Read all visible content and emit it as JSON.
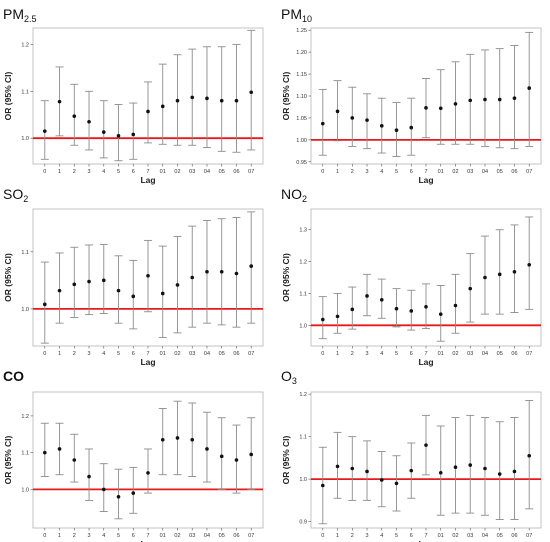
{
  "colors": {
    "reference_line": "#e8191b",
    "error_bar": "#8c8c8c",
    "point": "#111111",
    "frame": "#b5b5b5"
  },
  "chart_data": [
    {
      "type": "scatter",
      "error_bars": true,
      "title": "PM",
      "title_sub": "2.5",
      "title_bold": false,
      "xlabel": "Lag",
      "ylabel": "OR (95% CI)",
      "categories": [
        "0",
        "1",
        "2",
        "3",
        "4",
        "5",
        "6",
        "7",
        "01",
        "02",
        "03",
        "04",
        "05",
        "06",
        "07"
      ],
      "ylim": [
        0.945,
        1.235
      ],
      "yticks": [
        1.0,
        1.1,
        1.2
      ],
      "reference": 1.0,
      "values": [
        1.015,
        1.078,
        1.047,
        1.035,
        1.013,
        1.005,
        1.008,
        1.057,
        1.068,
        1.08,
        1.087,
        1.085,
        1.08,
        1.08,
        1.098
      ],
      "lower": [
        0.955,
        1.005,
        0.985,
        0.975,
        0.958,
        0.952,
        0.955,
        0.99,
        0.987,
        0.985,
        0.985,
        0.98,
        0.972,
        0.97,
        0.975
      ],
      "upper": [
        1.08,
        1.152,
        1.115,
        1.1,
        1.08,
        1.072,
        1.075,
        1.12,
        1.158,
        1.178,
        1.19,
        1.195,
        1.195,
        1.2,
        1.23
      ]
    },
    {
      "type": "scatter",
      "error_bars": true,
      "title": "PM",
      "title_sub": "10",
      "title_bold": false,
      "xlabel": "Lag",
      "ylabel": "OR (95% CI)",
      "categories": [
        "0",
        "1",
        "2",
        "3",
        "4",
        "5",
        "6",
        "7",
        "01",
        "02",
        "03",
        "04",
        "05",
        "06",
        "07"
      ],
      "ylim": [
        0.945,
        1.255
      ],
      "yticks": [
        0.95,
        1.0,
        1.05,
        1.1,
        1.15,
        1.2,
        1.25
      ],
      "ytick_labels": [
        "0.95",
        "1.00",
        "1.05",
        "1.10",
        "1.15",
        "1.20",
        "1.25"
      ],
      "reference": 1.0,
      "values": [
        1.037,
        1.065,
        1.05,
        1.045,
        1.032,
        1.022,
        1.028,
        1.073,
        1.072,
        1.082,
        1.09,
        1.092,
        1.092,
        1.095,
        1.118
      ],
      "lower": [
        0.965,
        0.998,
        0.985,
        0.98,
        0.97,
        0.962,
        0.965,
        1.005,
        0.99,
        0.99,
        0.99,
        0.985,
        0.982,
        0.98,
        0.985
      ],
      "upper": [
        1.115,
        1.135,
        1.12,
        1.105,
        1.095,
        1.085,
        1.095,
        1.14,
        1.16,
        1.178,
        1.195,
        1.205,
        1.208,
        1.215,
        1.245
      ]
    },
    {
      "type": "scatter",
      "error_bars": true,
      "title": "SO",
      "title_sub": "2",
      "title_bold": false,
      "xlabel": "Lag",
      "ylabel": "OR (95% CI)",
      "categories": [
        "0",
        "1",
        "2",
        "3",
        "4",
        "5",
        "6",
        "7",
        "01",
        "02",
        "03",
        "04",
        "05",
        "06",
        "07"
      ],
      "ylim": [
        0.935,
        1.175
      ],
      "yticks": [
        1.0,
        1.1
      ],
      "reference": 1.0,
      "values": [
        1.008,
        1.032,
        1.043,
        1.048,
        1.05,
        1.032,
        1.022,
        1.058,
        1.027,
        1.042,
        1.055,
        1.065,
        1.065,
        1.062,
        1.075
      ],
      "lower": [
        0.94,
        0.975,
        0.985,
        0.99,
        0.992,
        0.975,
        0.965,
        0.995,
        0.95,
        0.958,
        0.968,
        0.975,
        0.972,
        0.968,
        0.975
      ],
      "upper": [
        1.082,
        1.098,
        1.108,
        1.112,
        1.113,
        1.093,
        1.085,
        1.12,
        1.11,
        1.127,
        1.145,
        1.155,
        1.158,
        1.16,
        1.17
      ]
    },
    {
      "type": "scatter",
      "error_bars": true,
      "title": "NO",
      "title_sub": "2",
      "title_bold": false,
      "xlabel": "Lag",
      "ylabel": "OR (95% CI)",
      "categories": [
        "0",
        "1",
        "2",
        "3",
        "4",
        "5",
        "6",
        "7",
        "01",
        "02",
        "03",
        "04",
        "05",
        "06",
        "07"
      ],
      "ylim": [
        0.935,
        1.365
      ],
      "yticks": [
        1.0,
        1.1,
        1.2,
        1.3
      ],
      "reference": 1.0,
      "values": [
        1.018,
        1.028,
        1.05,
        1.092,
        1.08,
        1.052,
        1.045,
        1.058,
        1.035,
        1.062,
        1.115,
        1.15,
        1.16,
        1.168,
        1.19
      ],
      "lower": [
        0.958,
        0.975,
        0.988,
        1.03,
        1.022,
        0.995,
        0.985,
        0.99,
        0.95,
        0.975,
        1.01,
        1.035,
        1.035,
        1.04,
        1.05
      ],
      "upper": [
        1.09,
        1.1,
        1.12,
        1.16,
        1.145,
        1.115,
        1.11,
        1.13,
        1.125,
        1.16,
        1.225,
        1.28,
        1.3,
        1.315,
        1.34
      ]
    },
    {
      "type": "scatter",
      "error_bars": true,
      "title": "CO",
      "title_sub": "",
      "title_bold": true,
      "xlabel": "Lag",
      "ylabel": "OR (95% CI)",
      "categories": [
        "0",
        "1",
        "2",
        "3",
        "4",
        "5",
        "6",
        "7",
        "01",
        "02",
        "03",
        "04",
        "05",
        "06",
        "07"
      ],
      "ylim": [
        0.895,
        1.265
      ],
      "yticks": [
        1.0,
        1.1,
        1.2
      ],
      "reference": 1.0,
      "values": [
        1.1,
        1.11,
        1.08,
        1.035,
        1.0,
        0.98,
        0.99,
        1.045,
        1.135,
        1.14,
        1.135,
        1.11,
        1.09,
        1.08,
        1.095
      ],
      "lower": [
        1.035,
        1.04,
        1.02,
        0.97,
        0.94,
        0.92,
        0.935,
        0.99,
        1.04,
        1.04,
        1.035,
        1.02,
        1.0,
        0.99,
        1.0
      ],
      "upper": [
        1.18,
        1.18,
        1.15,
        1.11,
        1.07,
        1.055,
        1.06,
        1.11,
        1.22,
        1.24,
        1.235,
        1.21,
        1.195,
        1.175,
        1.195
      ]
    },
    {
      "type": "scatter",
      "error_bars": true,
      "title": "O",
      "title_sub": "3",
      "title_bold": false,
      "xlabel": "Lag",
      "ylabel": "OR (95% CI)",
      "categories": [
        "0",
        "1",
        "2",
        "3",
        "4",
        "5",
        "6",
        "7",
        "01",
        "02",
        "03",
        "04",
        "05",
        "06",
        "07"
      ],
      "ylim": [
        0.885,
        1.205
      ],
      "yticks": [
        0.9,
        1.0,
        1.1,
        1.2
      ],
      "reference": 1.0,
      "values": [
        0.985,
        1.03,
        1.025,
        1.018,
        0.998,
        0.99,
        1.02,
        1.08,
        1.015,
        1.028,
        1.033,
        1.025,
        1.012,
        1.018,
        1.055
      ],
      "lower": [
        0.895,
        0.955,
        0.95,
        0.95,
        0.935,
        0.925,
        0.955,
        1.01,
        0.915,
        0.92,
        0.92,
        0.915,
        0.905,
        0.905,
        0.93
      ],
      "upper": [
        1.075,
        1.11,
        1.1,
        1.09,
        1.065,
        1.055,
        1.085,
        1.15,
        1.125,
        1.145,
        1.15,
        1.145,
        1.135,
        1.145,
        1.185
      ]
    }
  ]
}
